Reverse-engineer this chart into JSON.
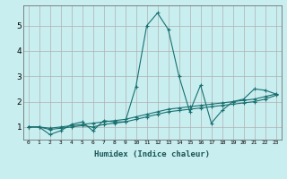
{
  "xlabel": "Humidex (Indice chaleur)",
  "ylabel": "",
  "background_color": "#c8eef0",
  "grid_color": "#b0b0b0",
  "line_color": "#1a7070",
  "x_data": [
    0,
    1,
    2,
    3,
    4,
    5,
    6,
    7,
    8,
    9,
    10,
    11,
    12,
    13,
    14,
    15,
    16,
    17,
    18,
    19,
    20,
    21,
    22,
    23
  ],
  "line1": [
    1.0,
    1.0,
    0.7,
    0.85,
    1.1,
    1.2,
    0.85,
    1.25,
    1.2,
    1.2,
    2.6,
    5.0,
    5.5,
    4.85,
    3.0,
    1.6,
    2.65,
    1.15,
    1.65,
    2.0,
    2.1,
    2.5,
    2.45,
    2.3
  ],
  "line2": [
    1.0,
    1.0,
    0.95,
    1.0,
    1.05,
    1.1,
    1.15,
    1.2,
    1.25,
    1.3,
    1.4,
    1.5,
    1.6,
    1.7,
    1.75,
    1.8,
    1.85,
    1.9,
    1.95,
    2.0,
    2.05,
    2.1,
    2.2,
    2.3
  ],
  "line3": [
    1.0,
    1.0,
    0.9,
    0.95,
    1.0,
    1.05,
    1.0,
    1.1,
    1.15,
    1.2,
    1.3,
    1.4,
    1.5,
    1.6,
    1.65,
    1.7,
    1.75,
    1.8,
    1.85,
    1.9,
    1.95,
    2.0,
    2.1,
    2.25
  ],
  "ylim": [
    0.5,
    5.8
  ],
  "xlim": [
    -0.5,
    23.5
  ],
  "yticks": [
    1,
    2,
    3,
    4,
    5
  ],
  "xtick_labels": [
    "0",
    "1",
    "2",
    "3",
    "4",
    "5",
    "6",
    "7",
    "8",
    "9",
    "10",
    "11",
    "12",
    "13",
    "14",
    "15",
    "16",
    "17",
    "18",
    "19",
    "20",
    "21",
    "22",
    "23"
  ]
}
